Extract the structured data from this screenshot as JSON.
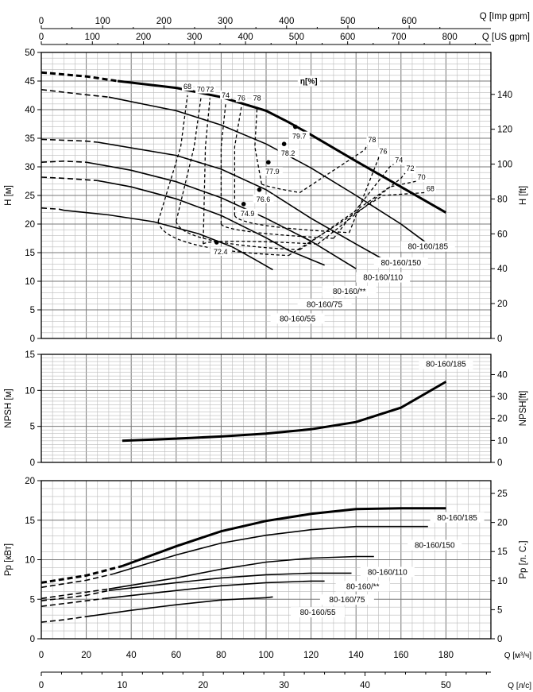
{
  "chart_data": {
    "type": "line",
    "top_axes": [
      {
        "label": "Q [Imp gpm]",
        "ticks": [
          0,
          100,
          200,
          300,
          400,
          500,
          600
        ]
      },
      {
        "label": "Q [US gpm]",
        "ticks": [
          0,
          100,
          200,
          300,
          400,
          500,
          600,
          700,
          800
        ]
      }
    ],
    "bottom_axes": [
      {
        "label": "Q [м³/ч]",
        "ticks": [
          0,
          20,
          40,
          60,
          80,
          100,
          120,
          140,
          160,
          180
        ]
      },
      {
        "label": "Q [л/с]",
        "ticks": [
          0,
          10,
          20,
          30,
          40,
          50
        ]
      }
    ],
    "efficiency_label": "η[%]",
    "panels": [
      {
        "id": "head",
        "ylabel": "H [м]",
        "ylabel_right": "H [ft]",
        "ylim": [
          0,
          50
        ],
        "yticks": [
          0,
          5,
          10,
          15,
          20,
          25,
          30,
          35,
          40,
          45,
          50
        ],
        "yticks_right": [
          0,
          20,
          40,
          60,
          80,
          100,
          120,
          140
        ],
        "series": [
          {
            "name": "80-160/185",
            "dashed": [
              [
                0,
                46.5
              ],
              [
                20,
                45.8
              ],
              [
                34,
                45.0
              ]
            ],
            "solid": [
              [
                34,
                45.0
              ],
              [
                60,
                43.8
              ],
              [
                80,
                42.2
              ],
              [
                100,
                39.8
              ],
              [
                110,
                37.8
              ],
              [
                120,
                35.6
              ],
              [
                140,
                31.0
              ],
              [
                160,
                26.5
              ],
              [
                180,
                22.0
              ]
            ]
          },
          {
            "name": "80-160/150",
            "dashed": [
              [
                0,
                43.5
              ],
              [
                20,
                42.6
              ],
              [
                30,
                42.2
              ]
            ],
            "solid": [
              [
                30,
                42.2
              ],
              [
                60,
                39.8
              ],
              [
                80,
                37.3
              ],
              [
                100,
                34.0
              ],
              [
                120,
                29.8
              ],
              [
                140,
                25.0
              ],
              [
                160,
                20.0
              ],
              [
                172,
                16.5
              ]
            ]
          },
          {
            "name": "80-160/110",
            "dashed": [
              [
                0,
                34.8
              ],
              [
                20,
                34.5
              ],
              [
                25,
                34.3
              ]
            ],
            "solid": [
              [
                25,
                34.3
              ],
              [
                60,
                32.0
              ],
              [
                80,
                29.6
              ],
              [
                100,
                26.0
              ],
              [
                120,
                21.0
              ],
              [
                140,
                16.5
              ],
              [
                155,
                13.2
              ]
            ]
          },
          {
            "name": "80-160/**",
            "dashed": [
              [
                0,
                30.8
              ],
              [
                10,
                31.0
              ],
              [
                20,
                30.8
              ]
            ],
            "solid": [
              [
                20,
                30.8
              ],
              [
                40,
                29.4
              ],
              [
                60,
                27.4
              ],
              [
                80,
                24.6
              ],
              [
                100,
                21.0
              ],
              [
                120,
                17.0
              ],
              [
                140,
                12.2
              ]
            ]
          },
          {
            "name": "80-160/75",
            "dashed": [
              [
                0,
                28.2
              ],
              [
                10,
                28.0
              ],
              [
                25,
                27.6
              ]
            ],
            "solid": [
              [
                25,
                27.6
              ],
              [
                40,
                26.5
              ],
              [
                60,
                24.4
              ],
              [
                80,
                21.5
              ],
              [
                100,
                17.6
              ],
              [
                110,
                15.4
              ],
              [
                126,
                12.8
              ]
            ]
          },
          {
            "name": "80-160/55",
            "dashed": [
              [
                0,
                22.8
              ],
              [
                8,
                22.6
              ],
              [
                10,
                22.4
              ]
            ],
            "solid": [
              [
                10,
                22.4
              ],
              [
                30,
                21.6
              ],
              [
                50,
                20.4
              ],
              [
                70,
                18.3
              ],
              [
                85,
                16.0
              ],
              [
                95,
                13.8
              ],
              [
                103,
                12.0
              ]
            ]
          }
        ],
        "bep_points": [
          {
            "label": "79.7",
            "q": 113,
            "h": 37.0
          },
          {
            "label": "78.2",
            "q": 108,
            "h": 34.0
          },
          {
            "label": "77.9",
            "q": 101,
            "h": 30.8
          },
          {
            "label": "76.6",
            "q": 97,
            "h": 26.0
          },
          {
            "label": "74.9",
            "q": 90,
            "h": 23.5
          },
          {
            "label": "72.4",
            "q": 78,
            "h": 16.8
          }
        ],
        "efficiency_contours": [
          {
            "label": "68",
            "points": [
              [
                52,
                20.5
              ],
              [
                62,
                33.5
              ],
              [
                65,
                42.5
              ],
              [
                110,
                14.5
              ],
              [
                152,
                25.0
              ],
              [
                171,
                25.5
              ]
            ]
          },
          {
            "label": "70",
            "points": [
              [
                60,
                20.5
              ],
              [
                68,
                33.5
              ],
              [
                71,
                42.0
              ],
              [
                115,
                15.5
              ],
              [
                155,
                26.5
              ],
              [
                167,
                27.5
              ]
            ]
          },
          {
            "label": "72",
            "points": [
              [
                72,
                16.5
              ],
              [
                73,
                33.5
              ],
              [
                75,
                42.0
              ],
              [
                123,
                16.5
              ],
              [
                160,
                28.0
              ],
              [
                162,
                29.0
              ]
            ]
          },
          {
            "label": "74",
            "points": [
              [
                80,
                20.0
              ],
              [
                80,
                33.5
              ],
              [
                82,
                41.0
              ],
              [
                130,
                17.5
              ],
              [
                155,
                30.0
              ],
              [
                157,
                30.5
              ]
            ]
          },
          {
            "label": "76",
            "points": [
              [
                86,
                21.5
              ],
              [
                86,
                33.5
              ],
              [
                89,
                40.5
              ],
              [
                137,
                18.5
              ],
              [
                150,
                31.5
              ],
              [
                150,
                32.0
              ]
            ]
          },
          {
            "label": "78",
            "points": [
              [
                98,
                27.0
              ],
              [
                95,
                33.5
              ],
              [
                96,
                40.5
              ],
              [
                115,
                25.5
              ],
              [
                144,
                33.0
              ],
              [
                145,
                34.0
              ]
            ]
          }
        ],
        "series_labels": [
          "80-160/185",
          "80-160/150",
          "80-160/110",
          "80-160/**",
          "80-160/75",
          "80-160/55"
        ]
      },
      {
        "id": "npsh",
        "ylabel": "NPSH [м]",
        "ylabel_right": "NPSH[ft]",
        "ylim": [
          0,
          15
        ],
        "yticks": [
          0,
          5,
          10,
          15
        ],
        "yticks_right": [
          0,
          10,
          20,
          30,
          40
        ],
        "series": [
          {
            "name": "80-160/185",
            "solid": [
              [
                36,
                3.0
              ],
              [
                60,
                3.3
              ],
              [
                80,
                3.6
              ],
              [
                100,
                4.0
              ],
              [
                120,
                4.6
              ],
              [
                140,
                5.6
              ],
              [
                160,
                7.6
              ],
              [
                180,
                11.2
              ]
            ]
          }
        ]
      },
      {
        "id": "power",
        "ylabel": "Pp [кВт]",
        "ylabel_right": "Pp [л. С.]",
        "ylim": [
          0,
          20
        ],
        "yticks": [
          0,
          5,
          10,
          15,
          20
        ],
        "yticks_right": [
          0,
          5,
          10,
          15,
          20,
          25
        ],
        "series": [
          {
            "name": "80-160/185",
            "dashed": [
              [
                0,
                7.1
              ],
              [
                20,
                8.0
              ],
              [
                36,
                9.2
              ]
            ],
            "solid": [
              [
                36,
                9.2
              ],
              [
                60,
                11.7
              ],
              [
                80,
                13.6
              ],
              [
                100,
                14.9
              ],
              [
                120,
                15.8
              ],
              [
                140,
                16.4
              ],
              [
                160,
                16.5
              ],
              [
                180,
                16.5
              ]
            ]
          },
          {
            "name": "80-160/150",
            "dashed": [
              [
                0,
                6.5
              ],
              [
                20,
                7.4
              ],
              [
                32,
                8.2
              ]
            ],
            "solid": [
              [
                32,
                8.2
              ],
              [
                60,
                10.6
              ],
              [
                80,
                12.1
              ],
              [
                100,
                13.1
              ],
              [
                120,
                13.8
              ],
              [
                140,
                14.2
              ],
              [
                172,
                14.2
              ]
            ]
          },
          {
            "name": "80-160/110",
            "dashed": [
              [
                0,
                5.1
              ],
              [
                20,
                5.9
              ],
              [
                30,
                6.3
              ]
            ],
            "solid": [
              [
                30,
                6.3
              ],
              [
                60,
                7.7
              ],
              [
                80,
                8.8
              ],
              [
                100,
                9.7
              ],
              [
                120,
                10.2
              ],
              [
                140,
                10.4
              ],
              [
                148,
                10.4
              ]
            ]
          },
          {
            "name": "80-160/**",
            "dashed": [
              [
                0,
                4.8
              ],
              [
                20,
                5.5
              ],
              [
                30,
                6.1
              ]
            ],
            "solid": [
              [
                30,
                6.1
              ],
              [
                60,
                7.1
              ],
              [
                80,
                7.7
              ],
              [
                100,
                8.1
              ],
              [
                120,
                8.3
              ],
              [
                138,
                8.3
              ]
            ]
          },
          {
            "name": "80-160/75",
            "dashed": [
              [
                0,
                4.1
              ],
              [
                20,
                4.8
              ],
              [
                28,
                5.1
              ]
            ],
            "solid": [
              [
                28,
                5.1
              ],
              [
                60,
                6.1
              ],
              [
                80,
                6.7
              ],
              [
                100,
                7.1
              ],
              [
                120,
                7.3
              ],
              [
                126,
                7.3
              ]
            ]
          },
          {
            "name": "80-160/55",
            "dashed": [
              [
                0,
                2.1
              ],
              [
                10,
                2.4
              ],
              [
                20,
                2.8
              ]
            ],
            "solid": [
              [
                20,
                2.8
              ],
              [
                40,
                3.6
              ],
              [
                60,
                4.3
              ],
              [
                80,
                4.9
              ],
              [
                100,
                5.2
              ],
              [
                103,
                5.3
              ]
            ]
          }
        ],
        "series_labels": [
          "80-160/185",
          "80-160/150",
          "80-160/110",
          "80-160/**",
          "80-160/75",
          "80-160/55"
        ]
      }
    ]
  }
}
